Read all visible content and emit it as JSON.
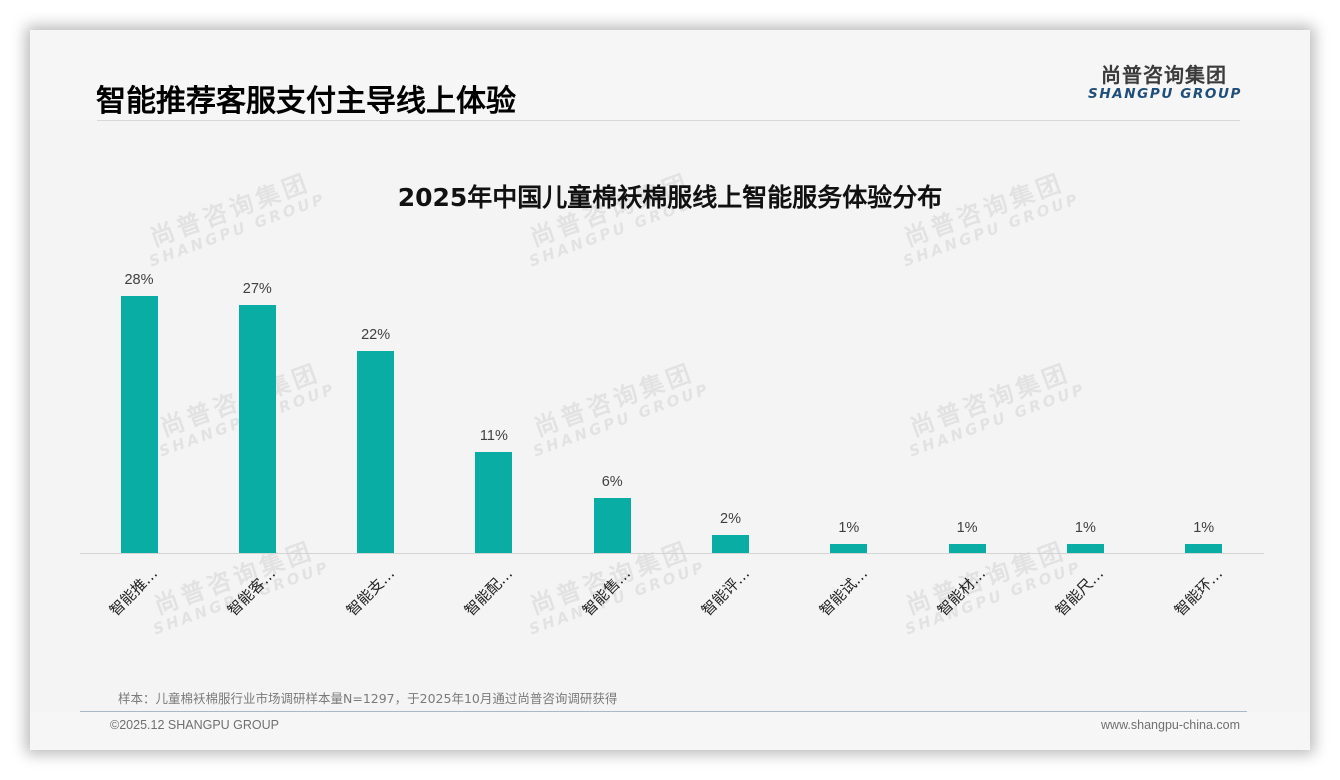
{
  "header": {
    "title": "智能推荐客服支付主导线上体验",
    "logo_cn": "尚普咨询集团",
    "logo_en": "SHANGPU GROUP"
  },
  "watermark": {
    "cn": "尚普咨询集团",
    "en": "SHANGPU GROUP"
  },
  "colors": {
    "bar": "#0aada3",
    "logo_en": "#1f4e79",
    "background": "#f4f4f4"
  },
  "chart_data": {
    "type": "bar",
    "title": "2025年中国儿童棉袄棉服线上智能服务体验分布",
    "categories": [
      "智能推…",
      "智能客…",
      "智能支…",
      "智能配…",
      "智能售…",
      "智能评…",
      "智能试…",
      "智能材…",
      "智能尺…",
      "智能环…"
    ],
    "values": [
      28,
      27,
      22,
      11,
      6,
      2,
      1,
      1,
      1,
      1
    ],
    "value_labels": [
      "28%",
      "27%",
      "22%",
      "11%",
      "6%",
      "2%",
      "1%",
      "1%",
      "1%",
      "1%"
    ],
    "unit": "%",
    "xlabel": "",
    "ylabel": "",
    "ylim": [
      0,
      30
    ],
    "grid": false,
    "legend": null,
    "category_label_rotation": -45
  },
  "footer": {
    "footnote": "样本：儿童棉袄棉服行业市场调研样本量N=1297，于2025年10月通过尚普咨询调研获得",
    "copyright": "©2025.12 SHANGPU GROUP",
    "website": "www.shangpu-china.com"
  }
}
